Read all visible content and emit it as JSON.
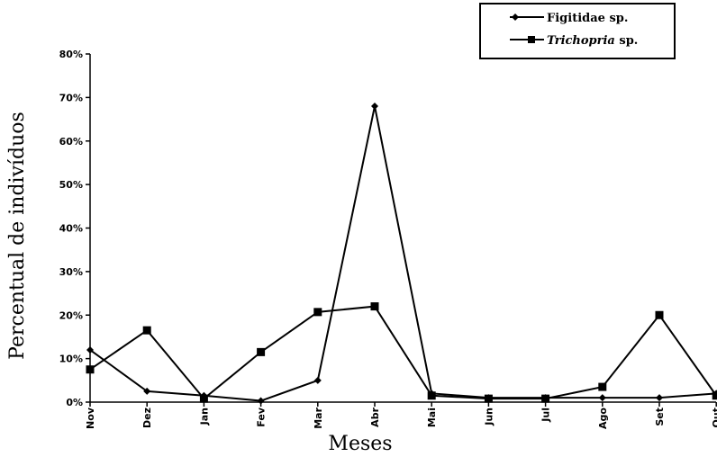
{
  "chart_data": {
    "type": "line",
    "title": "",
    "xlabel": "Meses",
    "ylabel": "Percentual de indivíduos",
    "categories": [
      "Nov",
      "Dez",
      "Jan",
      "Fev",
      "Mar",
      "Abr",
      "Mai",
      "Jun",
      "Jul",
      "Ago",
      "Set",
      "Out"
    ],
    "ylim": [
      0,
      80
    ],
    "yticks": [
      "0%",
      "10%",
      "20%",
      "30%",
      "40%",
      "50%",
      "60%",
      "70%",
      "80%"
    ],
    "legend_position": "top-right",
    "grid": false,
    "series": [
      {
        "name_plain": "Figitidae sp.",
        "marker": "diamond",
        "values": [
          12,
          2.5,
          1.5,
          0.3,
          5,
          68,
          2,
          1,
          1,
          1,
          1,
          2
        ]
      },
      {
        "name_italic": "Trichopria",
        "name_suffix": " sp.",
        "marker": "square",
        "values": [
          7.5,
          16.5,
          0.8,
          11.5,
          20.7,
          22,
          1.5,
          0.8,
          0.8,
          3.5,
          20,
          1.5
        ]
      }
    ]
  }
}
